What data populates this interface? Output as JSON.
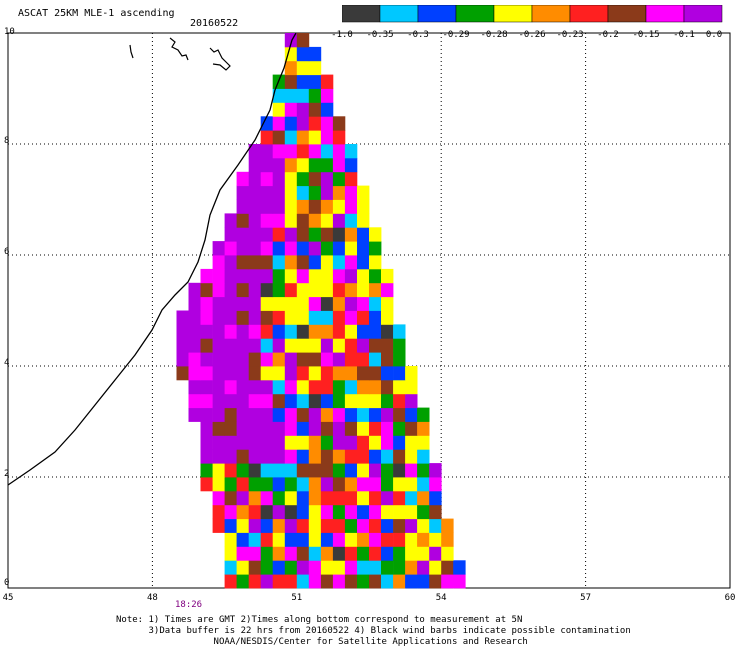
{
  "header": {
    "title": "ASCAT 25KM MLE-1 ascending",
    "date": "20160522"
  },
  "colorbar": {
    "labels": [
      "-1.0",
      "-0.35",
      "-0.3",
      "-0.29",
      "-0.28",
      "-0.26",
      "-0.23",
      "-0.2",
      "-0.15",
      "-0.1",
      "0.0"
    ],
    "colors": [
      "#3a3a3a",
      "#00c8ff",
      "#0040ff",
      "#00a000",
      "#ffff00",
      "#ff8c00",
      "#ff2020",
      "#8b3a1a",
      "#ff00ff",
      "#b000e0"
    ]
  },
  "axes": {
    "lat_ticks": [
      "0",
      "2",
      "4",
      "6",
      "8",
      "10"
    ],
    "lon_ticks": [
      "45",
      "48",
      "51",
      "54",
      "57",
      "60"
    ]
  },
  "time_label": "18:26",
  "notes": [
    "Note: 1) Times are GMT 2)Times along bottom correspond to measurement at 5N",
    "      3)Data buffer is 22 hrs from 20160522 4) Black wind barbs indicate possible contamination",
    "                  NOAA/NESDIS/Center for Satellite Applications and Research"
  ],
  "map_data": {
    "lat_range": [
      0,
      10
    ],
    "lon_range": [
      45,
      60
    ],
    "swath_left_edge": [
      [
        0,
        49.5
      ],
      [
        1,
        49.3
      ],
      [
        2,
        49.0
      ],
      [
        3,
        48.8
      ],
      [
        4,
        48.5
      ],
      [
        5,
        48.5
      ],
      [
        6,
        49.2
      ],
      [
        7,
        49.6
      ],
      [
        8,
        50.0
      ],
      [
        9,
        50.5
      ],
      [
        10,
        50.7
      ]
    ],
    "swath_right_edge": [
      [
        0,
        54.4
      ],
      [
        1,
        54.1
      ],
      [
        2,
        53.8
      ],
      [
        3,
        53.6
      ],
      [
        4,
        53.3
      ],
      [
        5,
        52.9
      ],
      [
        6,
        52.7
      ],
      [
        7,
        52.3
      ],
      [
        8,
        52.0
      ],
      [
        9,
        51.6
      ],
      [
        10,
        51.2
      ]
    ]
  }
}
